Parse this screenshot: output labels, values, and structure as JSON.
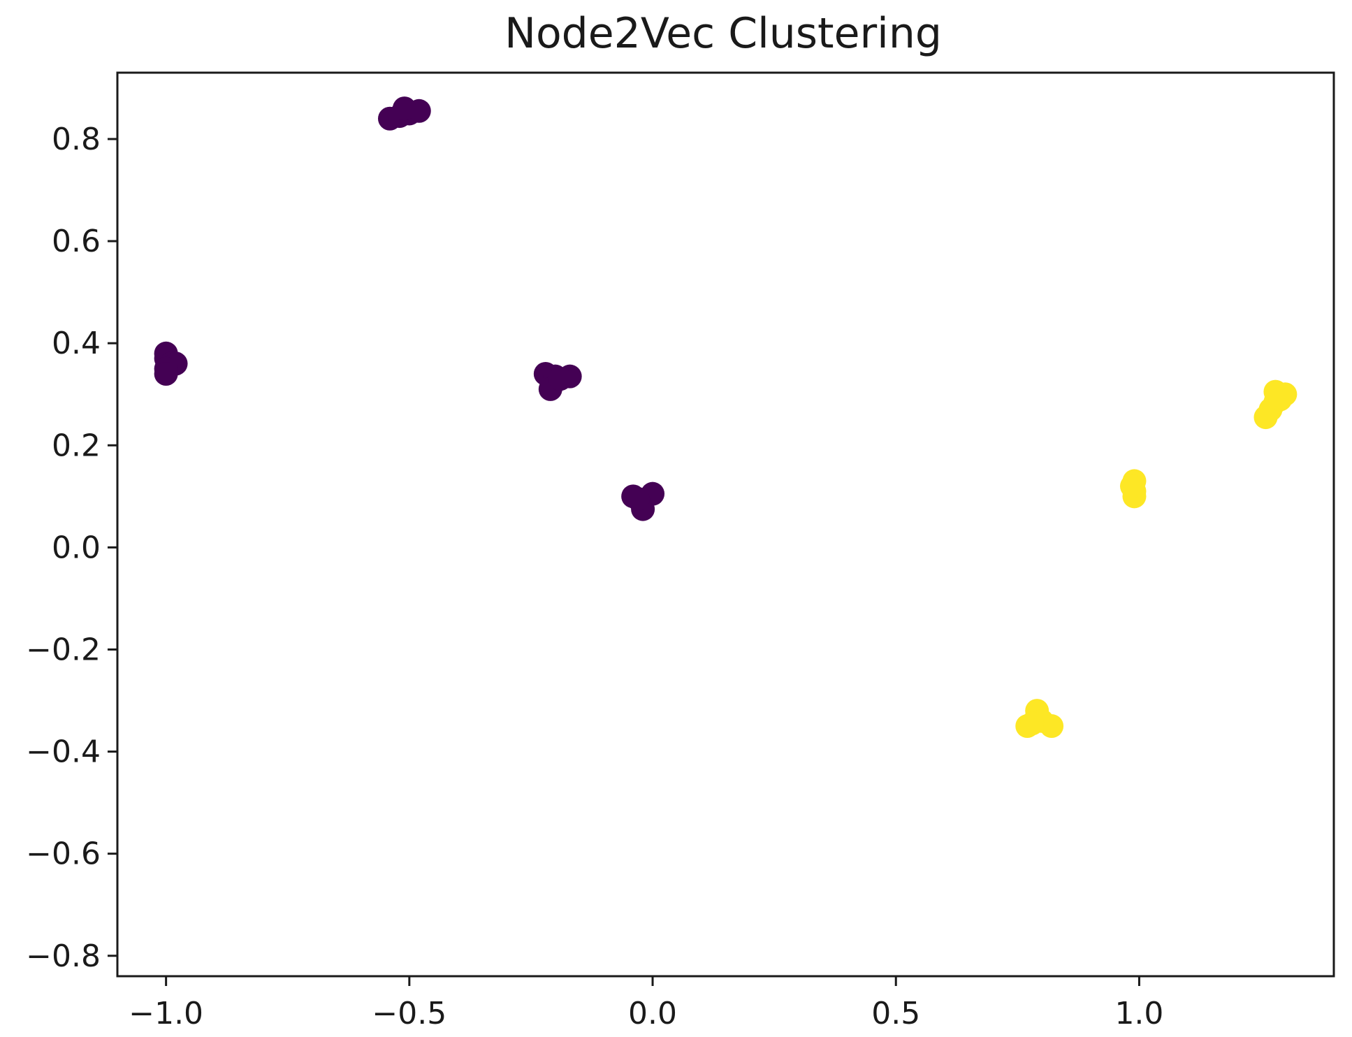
{
  "chart_data": {
    "type": "scatter",
    "title": "Node2Vec Clustering",
    "xlabel": "",
    "ylabel": "",
    "xlim": [
      -1.1,
      1.4
    ],
    "ylim": [
      -0.84,
      0.93
    ],
    "x_ticks": [
      -1.0,
      -0.5,
      0.0,
      0.5,
      1.0
    ],
    "x_tick_labels": [
      "−1.0",
      "−0.5",
      "0.0",
      "0.5",
      "1.0"
    ],
    "y_ticks": [
      0.8,
      0.6,
      0.4,
      0.2,
      0.0,
      -0.2,
      -0.4,
      -0.6,
      -0.8
    ],
    "y_tick_labels": [
      "0.8",
      "0.6",
      "0.4",
      "0.2",
      "0.0",
      "−0.2",
      "−0.4",
      "−0.6",
      "−0.8"
    ],
    "grid": false,
    "legend": "none",
    "colors": {
      "cluster_0": "#440154",
      "cluster_1": "#fde725"
    },
    "series": [
      {
        "cluster": 0,
        "color": "#440154",
        "points": [
          {
            "x": -1.0,
            "y": 0.38
          },
          {
            "x": -1.0,
            "y": 0.37
          },
          {
            "x": -0.99,
            "y": 0.36
          },
          {
            "x": -0.98,
            "y": 0.36
          },
          {
            "x": -1.0,
            "y": 0.35
          },
          {
            "x": -1.0,
            "y": 0.34
          },
          {
            "x": -0.54,
            "y": 0.84
          },
          {
            "x": -0.52,
            "y": 0.845
          },
          {
            "x": -0.5,
            "y": 0.85
          },
          {
            "x": -0.48,
            "y": 0.855
          },
          {
            "x": -0.51,
            "y": 0.86
          },
          {
            "x": -0.22,
            "y": 0.34
          },
          {
            "x": -0.2,
            "y": 0.335
          },
          {
            "x": -0.17,
            "y": 0.335
          },
          {
            "x": -0.21,
            "y": 0.31
          },
          {
            "x": -0.19,
            "y": 0.33
          },
          {
            "x": -0.04,
            "y": 0.1
          },
          {
            "x": -0.02,
            "y": 0.09
          },
          {
            "x": 0.0,
            "y": 0.105
          },
          {
            "x": -0.02,
            "y": 0.075
          },
          {
            "x": -0.03,
            "y": 0.095
          }
        ]
      },
      {
        "cluster": 1,
        "color": "#fde725",
        "points": [
          {
            "x": 0.77,
            "y": -0.35
          },
          {
            "x": 0.79,
            "y": -0.32
          },
          {
            "x": 0.8,
            "y": -0.34
          },
          {
            "x": 0.82,
            "y": -0.35
          },
          {
            "x": 0.78,
            "y": -0.345
          },
          {
            "x": 0.99,
            "y": 0.13
          },
          {
            "x": 0.99,
            "y": 0.11
          },
          {
            "x": 0.99,
            "y": 0.1
          },
          {
            "x": 0.985,
            "y": 0.12
          },
          {
            "x": 1.26,
            "y": 0.255
          },
          {
            "x": 1.27,
            "y": 0.27
          },
          {
            "x": 1.28,
            "y": 0.285
          },
          {
            "x": 1.28,
            "y": 0.305
          },
          {
            "x": 1.3,
            "y": 0.3
          },
          {
            "x": 1.29,
            "y": 0.29
          }
        ]
      }
    ]
  }
}
